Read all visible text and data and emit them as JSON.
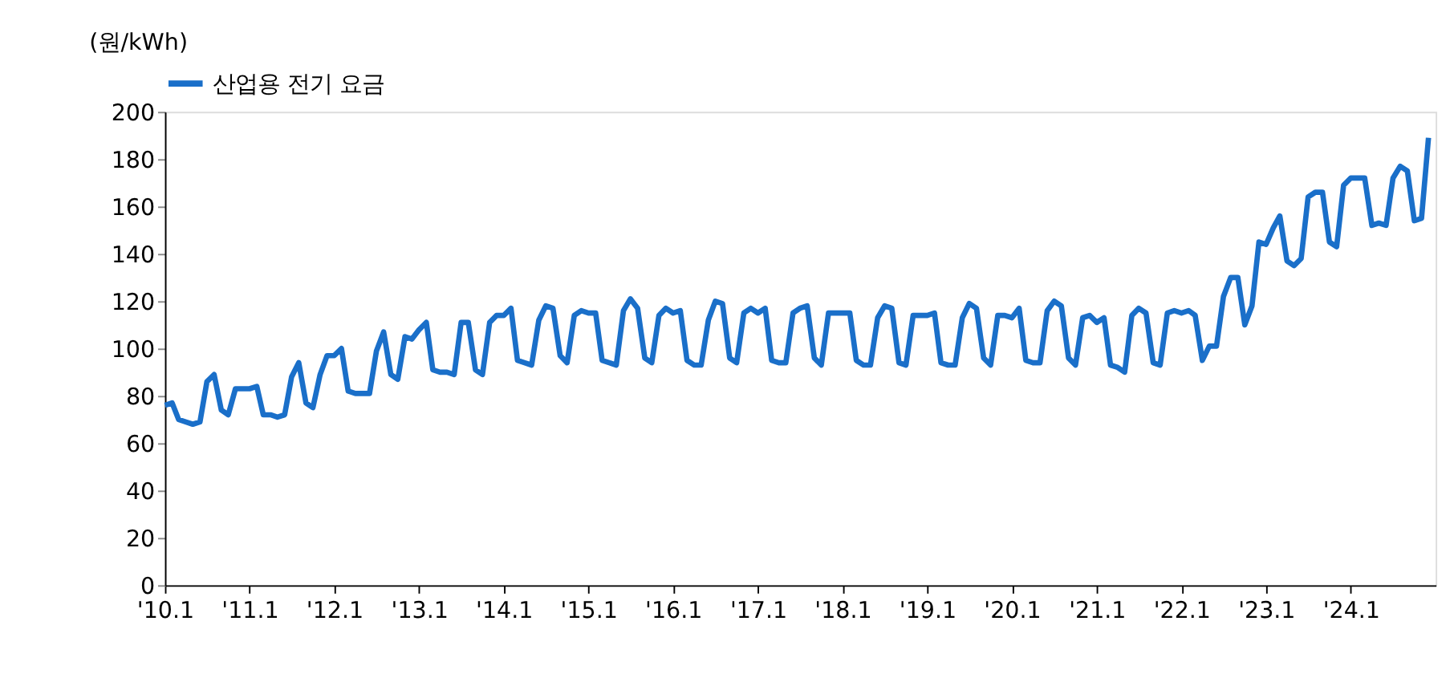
{
  "chart_data": {
    "type": "line",
    "ylabel": "(원/kWh)",
    "legend": "top",
    "grid": false,
    "marker": "none",
    "line_style": "solid",
    "ylim": [
      0,
      200
    ],
    "yticks": [
      0,
      20,
      40,
      60,
      80,
      100,
      120,
      140,
      160,
      180,
      200
    ],
    "xlim": [
      "2010-01",
      "2025-01"
    ],
    "xticks": [
      {
        "value": "2010-01",
        "label": "'10.1"
      },
      {
        "value": "2011-01",
        "label": "'11.1"
      },
      {
        "value": "2012-01",
        "label": "'12.1"
      },
      {
        "value": "2013-01",
        "label": "'13.1"
      },
      {
        "value": "2014-01",
        "label": "'14.1"
      },
      {
        "value": "2015-01",
        "label": "'15.1"
      },
      {
        "value": "2016-01",
        "label": "'16.1"
      },
      {
        "value": "2017-01",
        "label": "'17.1"
      },
      {
        "value": "2018-01",
        "label": "'18.1"
      },
      {
        "value": "2019-01",
        "label": "'19.1"
      },
      {
        "value": "2020-01",
        "label": "'20.1"
      },
      {
        "value": "2021-01",
        "label": "'21.1"
      },
      {
        "value": "2022-01",
        "label": "'22.1"
      },
      {
        "value": "2023-01",
        "label": "'23.1"
      },
      {
        "value": "2024-01",
        "label": "'24.1"
      }
    ],
    "x": [
      "2010-01",
      "2010-02",
      "2010-03",
      "2010-04",
      "2010-05",
      "2010-06",
      "2010-07",
      "2010-08",
      "2010-09",
      "2010-10",
      "2010-11",
      "2010-12",
      "2011-01",
      "2011-02",
      "2011-03",
      "2011-04",
      "2011-05",
      "2011-06",
      "2011-07",
      "2011-08",
      "2011-09",
      "2011-10",
      "2011-11",
      "2011-12",
      "2012-01",
      "2012-02",
      "2012-03",
      "2012-04",
      "2012-05",
      "2012-06",
      "2012-07",
      "2012-08",
      "2012-09",
      "2012-10",
      "2012-11",
      "2012-12",
      "2013-01",
      "2013-02",
      "2013-03",
      "2013-04",
      "2013-05",
      "2013-06",
      "2013-07",
      "2013-08",
      "2013-09",
      "2013-10",
      "2013-11",
      "2013-12",
      "2014-01",
      "2014-02",
      "2014-03",
      "2014-04",
      "2014-05",
      "2014-06",
      "2014-07",
      "2014-08",
      "2014-09",
      "2014-10",
      "2014-11",
      "2014-12",
      "2015-01",
      "2015-02",
      "2015-03",
      "2015-04",
      "2015-05",
      "2015-06",
      "2015-07",
      "2015-08",
      "2015-09",
      "2015-10",
      "2015-11",
      "2015-12",
      "2016-01",
      "2016-02",
      "2016-03",
      "2016-04",
      "2016-05",
      "2016-06",
      "2016-07",
      "2016-08",
      "2016-09",
      "2016-10",
      "2016-11",
      "2016-12",
      "2017-01",
      "2017-02",
      "2017-03",
      "2017-04",
      "2017-05",
      "2017-06",
      "2017-07",
      "2017-08",
      "2017-09",
      "2017-10",
      "2017-11",
      "2017-12",
      "2018-01",
      "2018-02",
      "2018-03",
      "2018-04",
      "2018-05",
      "2018-06",
      "2018-07",
      "2018-08",
      "2018-09",
      "2018-10",
      "2018-11",
      "2018-12",
      "2019-01",
      "2019-02",
      "2019-03",
      "2019-04",
      "2019-05",
      "2019-06",
      "2019-07",
      "2019-08",
      "2019-09",
      "2019-10",
      "2019-11",
      "2019-12",
      "2020-01",
      "2020-02",
      "2020-03",
      "2020-04",
      "2020-05",
      "2020-06",
      "2020-07",
      "2020-08",
      "2020-09",
      "2020-10",
      "2020-11",
      "2020-12",
      "2021-01",
      "2021-02",
      "2021-03",
      "2021-04",
      "2021-05",
      "2021-06",
      "2021-07",
      "2021-08",
      "2021-09",
      "2021-10",
      "2021-11",
      "2021-12",
      "2022-01",
      "2022-02",
      "2022-03",
      "2022-04",
      "2022-05",
      "2022-06",
      "2022-07",
      "2022-08",
      "2022-09",
      "2022-10",
      "2022-11",
      "2022-12",
      "2023-01",
      "2023-02",
      "2023-03",
      "2023-04",
      "2023-05",
      "2023-06",
      "2023-07",
      "2023-08",
      "2023-09",
      "2023-10",
      "2023-11",
      "2023-12",
      "2024-01",
      "2024-02",
      "2024-03",
      "2024-04",
      "2024-05",
      "2024-06",
      "2024-07",
      "2024-08",
      "2024-09",
      "2024-10",
      "2024-11",
      "2024-12"
    ],
    "series": [
      {
        "name": "산업용 전기 요금",
        "color": "#1a6fc9",
        "values": [
          76,
          77,
          70,
          69,
          68,
          69,
          86,
          89,
          74,
          72,
          83,
          83,
          83,
          84,
          72,
          72,
          71,
          72,
          88,
          94,
          77,
          75,
          89,
          97,
          97,
          100,
          82,
          81,
          81,
          81,
          99,
          107,
          89,
          87,
          105,
          104,
          108,
          111,
          91,
          90,
          90,
          89,
          111,
          111,
          91,
          89,
          111,
          114,
          114,
          117,
          95,
          94,
          93,
          112,
          118,
          117,
          97,
          94,
          114,
          116,
          115,
          115,
          95,
          94,
          93,
          116,
          121,
          117,
          96,
          94,
          114,
          117,
          115,
          116,
          95,
          93,
          93,
          112,
          120,
          119,
          96,
          94,
          115,
          117,
          115,
          117,
          95,
          94,
          94,
          115,
          117,
          118,
          96,
          93,
          115,
          115,
          115,
          115,
          95,
          93,
          93,
          113,
          118,
          117,
          94,
          93,
          114,
          114,
          114,
          115,
          94,
          93,
          93,
          113,
          119,
          117,
          96,
          93,
          114,
          114,
          113,
          117,
          95,
          94,
          94,
          116,
          120,
          118,
          96,
          93,
          113,
          114,
          111,
          113,
          93,
          92,
          90,
          114,
          117,
          115,
          94,
          93,
          115,
          116,
          115,
          116,
          114,
          95,
          101,
          101,
          122,
          130,
          130,
          110,
          118,
          145,
          144,
          151,
          156,
          137,
          135,
          138,
          164,
          166,
          166,
          145,
          143,
          169,
          172,
          172,
          172,
          152,
          153,
          152,
          172,
          177,
          175,
          154,
          155,
          189
        ]
      }
    ]
  }
}
